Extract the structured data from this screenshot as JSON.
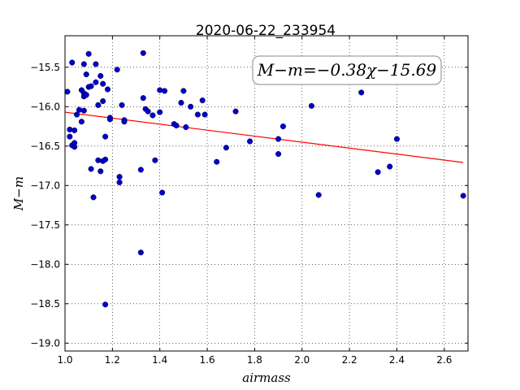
{
  "chart_data": {
    "type": "scatter",
    "title": "2020-06-22_233954",
    "xlabel": "airmass",
    "ylabel": "M−m",
    "xlim": [
      1.0,
      2.7
    ],
    "ylim": [
      -19.1,
      -15.1
    ],
    "y_inverted": true,
    "grid": true,
    "x_ticks": [
      1.0,
      1.2,
      1.4,
      1.6,
      1.8,
      2.0,
      2.2,
      2.4,
      2.6
    ],
    "x_tick_labels": [
      "1.0",
      "1.2",
      "1.4",
      "1.6",
      "1.8",
      "2.0",
      "2.2",
      "2.4",
      "2.6"
    ],
    "y_ticks": [
      -15.5,
      -16.0,
      -16.5,
      -17.0,
      -17.5,
      -18.0,
      -18.5,
      -19.0
    ],
    "y_tick_labels": [
      "−15.5",
      "−16.0",
      "−16.5",
      "−17.0",
      "−17.5",
      "−18.0",
      "−18.5",
      "−19.0"
    ],
    "annotation": "M−m=−0.38χ−15.69",
    "marker_color": "#0000cc",
    "fit_color": "#ff0000",
    "fit": {
      "slope": -0.38,
      "intercept": -15.69,
      "x_range": [
        1.0,
        2.68
      ]
    },
    "points": [
      [
        1.01,
        -15.81
      ],
      [
        1.02,
        -16.29
      ],
      [
        1.02,
        -16.38
      ],
      [
        1.03,
        -16.49
      ],
      [
        1.03,
        -15.44
      ],
      [
        1.04,
        -16.46
      ],
      [
        1.04,
        -16.51
      ],
      [
        1.04,
        -16.3
      ],
      [
        1.05,
        -16.1
      ],
      [
        1.06,
        -16.04
      ],
      [
        1.07,
        -15.79
      ],
      [
        1.07,
        -16.19
      ],
      [
        1.08,
        -15.83
      ],
      [
        1.08,
        -15.87
      ],
      [
        1.08,
        -16.05
      ],
      [
        1.08,
        -15.46
      ],
      [
        1.09,
        -15.59
      ],
      [
        1.09,
        -15.85
      ],
      [
        1.1,
        -15.33
      ],
      [
        1.1,
        -15.75
      ],
      [
        1.11,
        -16.79
      ],
      [
        1.11,
        -15.74
      ],
      [
        1.12,
        -17.15
      ],
      [
        1.13,
        -15.46
      ],
      [
        1.13,
        -15.69
      ],
      [
        1.14,
        -16.68
      ],
      [
        1.14,
        -15.98
      ],
      [
        1.15,
        -16.82
      ],
      [
        1.15,
        -15.61
      ],
      [
        1.16,
        -16.69
      ],
      [
        1.16,
        -15.71
      ],
      [
        1.16,
        -15.93
      ],
      [
        1.17,
        -16.67
      ],
      [
        1.17,
        -18.51
      ],
      [
        1.17,
        -16.38
      ],
      [
        1.18,
        -15.78
      ],
      [
        1.19,
        -16.14
      ],
      [
        1.19,
        -16.16
      ],
      [
        1.22,
        -15.53
      ],
      [
        1.23,
        -16.89
      ],
      [
        1.23,
        -16.96
      ],
      [
        1.24,
        -15.98
      ],
      [
        1.25,
        -16.17
      ],
      [
        1.25,
        -16.19
      ],
      [
        1.32,
        -17.85
      ],
      [
        1.32,
        -16.8
      ],
      [
        1.33,
        -15.32
      ],
      [
        1.33,
        -15.89
      ],
      [
        1.34,
        -16.03
      ],
      [
        1.35,
        -16.06
      ],
      [
        1.37,
        -16.11
      ],
      [
        1.38,
        -16.68
      ],
      [
        1.4,
        -16.07
      ],
      [
        1.4,
        -15.79
      ],
      [
        1.41,
        -17.09
      ],
      [
        1.42,
        -15.8
      ],
      [
        1.46,
        -16.22
      ],
      [
        1.47,
        -16.24
      ],
      [
        1.49,
        -15.95
      ],
      [
        1.5,
        -15.8
      ],
      [
        1.51,
        -16.26
      ],
      [
        1.53,
        -16.0
      ],
      [
        1.56,
        -16.1
      ],
      [
        1.58,
        -15.92
      ],
      [
        1.59,
        -16.1
      ],
      [
        1.64,
        -16.7
      ],
      [
        1.68,
        -16.52
      ],
      [
        1.72,
        -16.06
      ],
      [
        1.78,
        -16.44
      ],
      [
        1.9,
        -16.6
      ],
      [
        1.9,
        -16.41
      ],
      [
        1.92,
        -16.25
      ],
      [
        2.04,
        -15.99
      ],
      [
        2.07,
        -17.12
      ],
      [
        2.25,
        -15.82
      ],
      [
        2.32,
        -16.83
      ],
      [
        2.37,
        -16.76
      ],
      [
        2.4,
        -16.41
      ],
      [
        2.68,
        -17.13
      ]
    ]
  }
}
